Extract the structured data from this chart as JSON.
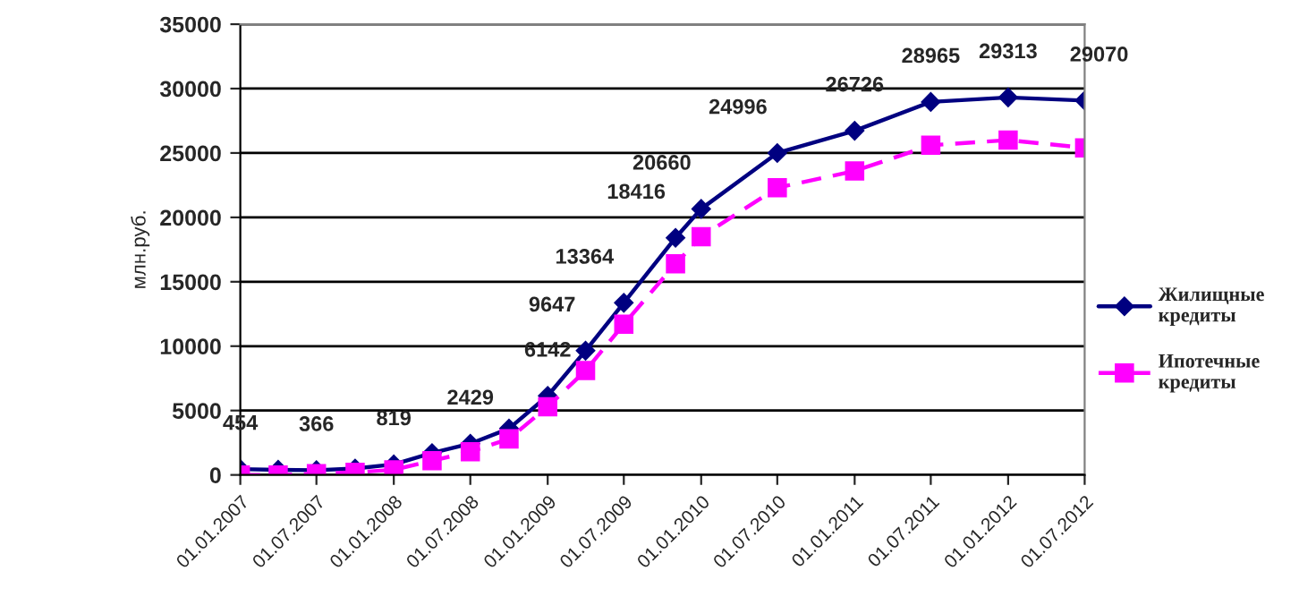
{
  "chart_data": {
    "type": "line",
    "ylabel": "млн.руб.",
    "x": [
      "2007-01-01",
      "2007-04-01",
      "2007-07-01",
      "2007-10-01",
      "2008-01-01",
      "2008-04-01",
      "2008-07-01",
      "2008-10-01",
      "2009-01-01",
      "2009-04-01",
      "2009-07-01",
      "2009-11-01",
      "2010-01-01",
      "2010-07-01",
      "2011-01-01",
      "2011-07-01",
      "2012-01-01",
      "2012-07-01"
    ],
    "series": [
      {
        "name": "Жилищные кредиты",
        "color": "#000080",
        "marker": "diamond",
        "line_style": "solid",
        "values": [
          454,
          400,
          366,
          500,
          819,
          1700,
          2429,
          3600,
          6142,
          9647,
          13364,
          18416,
          20660,
          24996,
          26726,
          28965,
          29313,
          29070
        ],
        "value_labels": [
          "454",
          null,
          "366",
          null,
          "819",
          null,
          "2429",
          null,
          "6142",
          "9647",
          "13364",
          "18416",
          "20660",
          "24996",
          "26726",
          "28965",
          "29313",
          "29070"
        ]
      },
      {
        "name": "Ипотечные кредиты",
        "color": "#ff00ff",
        "marker": "square",
        "line_style": "dashed",
        "values": [
          0,
          0,
          100,
          200,
          400,
          1100,
          1800,
          2800,
          5300,
          8100,
          11700,
          16400,
          18500,
          22300,
          23600,
          25600,
          26000,
          25400
        ]
      }
    ],
    "xlim": [
      "2007-01-01",
      "2012-07-01"
    ],
    "xticks": [
      {
        "value": "2007-01-01",
        "label": "01.01.2007"
      },
      {
        "value": "2007-07-01",
        "label": "01.07.2007"
      },
      {
        "value": "2008-01-01",
        "label": "01.01.2008"
      },
      {
        "value": "2008-07-01",
        "label": "01.07.2008"
      },
      {
        "value": "2009-01-01",
        "label": "01.01.2009"
      },
      {
        "value": "2009-07-01",
        "label": "01.07.2009"
      },
      {
        "value": "2010-01-01",
        "label": "01.01.2010"
      },
      {
        "value": "2010-07-01",
        "label": "01.07.2010"
      },
      {
        "value": "2011-01-01",
        "label": "01.01.2011"
      },
      {
        "value": "2011-07-01",
        "label": "01.07.2011"
      },
      {
        "value": "2012-01-01",
        "label": "01.01.2012"
      },
      {
        "value": "2012-07-01",
        "label": "01.07.2012"
      }
    ],
    "ylim": [
      0,
      35000
    ],
    "yticks": [
      0,
      5000,
      10000,
      15000,
      20000,
      25000,
      30000,
      35000
    ],
    "grid": "y",
    "legend": "right"
  }
}
